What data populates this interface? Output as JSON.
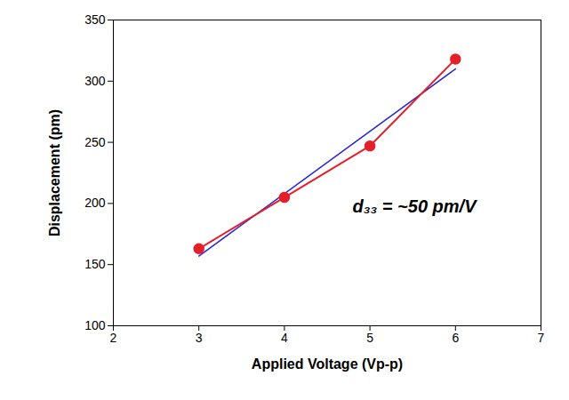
{
  "chart_data": {
    "type": "line",
    "x_label": "Applied Voltage (Vp-p)",
    "y_label": "Displacement (pm)",
    "annotation": "d₃₃ = ~50 pm/V",
    "series": [
      {
        "type": "line",
        "color": "#e3202a",
        "marker": "circle",
        "line_style": "solid",
        "x": [
          3,
          4,
          5,
          6
        ],
        "values": [
          163,
          205,
          247,
          318
        ]
      },
      {
        "type": "line",
        "color": "#2a2ad8",
        "marker": "none",
        "line_style": "solid",
        "x": [
          3,
          6
        ],
        "values": [
          157,
          310
        ]
      }
    ],
    "xlim": [
      2,
      7
    ],
    "xticks": [
      2,
      3,
      4,
      5,
      6,
      7
    ],
    "ylim": [
      100,
      350
    ],
    "yticks": [
      100,
      150,
      200,
      250,
      300,
      350
    ],
    "grid": false
  }
}
